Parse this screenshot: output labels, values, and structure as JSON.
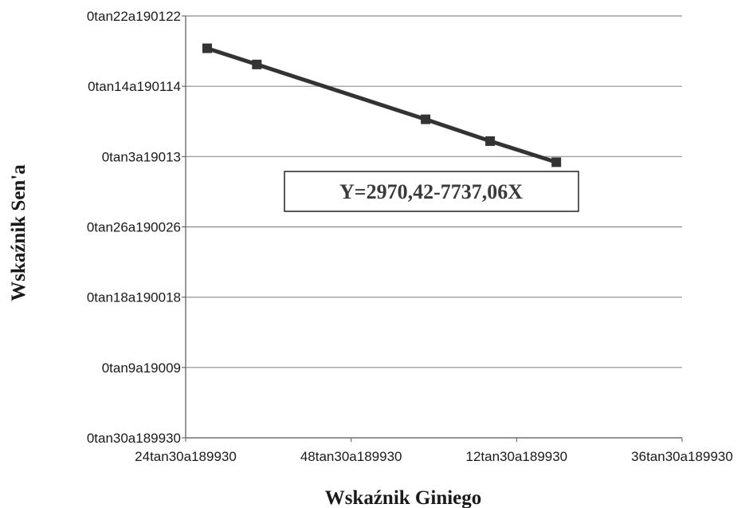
{
  "chart_data": {
    "type": "line",
    "xlabel": "Wskaźnik Giniego",
    "ylabel": "Wskaźnik Sen'a",
    "x_ticks": [
      "24tan30a189930",
      "48tan30a189930",
      "12tan30a189930",
      "36tan30a189930"
    ],
    "y_ticks": [
      "0tan22a190122",
      "0tan14a190114",
      "0tan3a19013",
      "0tan26a190026",
      "0tan18a190018",
      "0tan9a19009",
      "0tan30a189930"
    ],
    "xlim": [
      0,
      3
    ],
    "ylim": [
      0,
      6
    ],
    "grid": true,
    "annotation": "Y=2970,42-7737,06X",
    "series": [
      {
        "color": "#333333",
        "marker": "square",
        "points": [
          {
            "x": 0.13,
            "y": 5.54
          },
          {
            "x": 0.43,
            "y": 5.31
          },
          {
            "x": 1.45,
            "y": 4.53
          },
          {
            "x": 1.84,
            "y": 4.22
          },
          {
            "x": 2.24,
            "y": 3.92
          }
        ]
      }
    ]
  }
}
